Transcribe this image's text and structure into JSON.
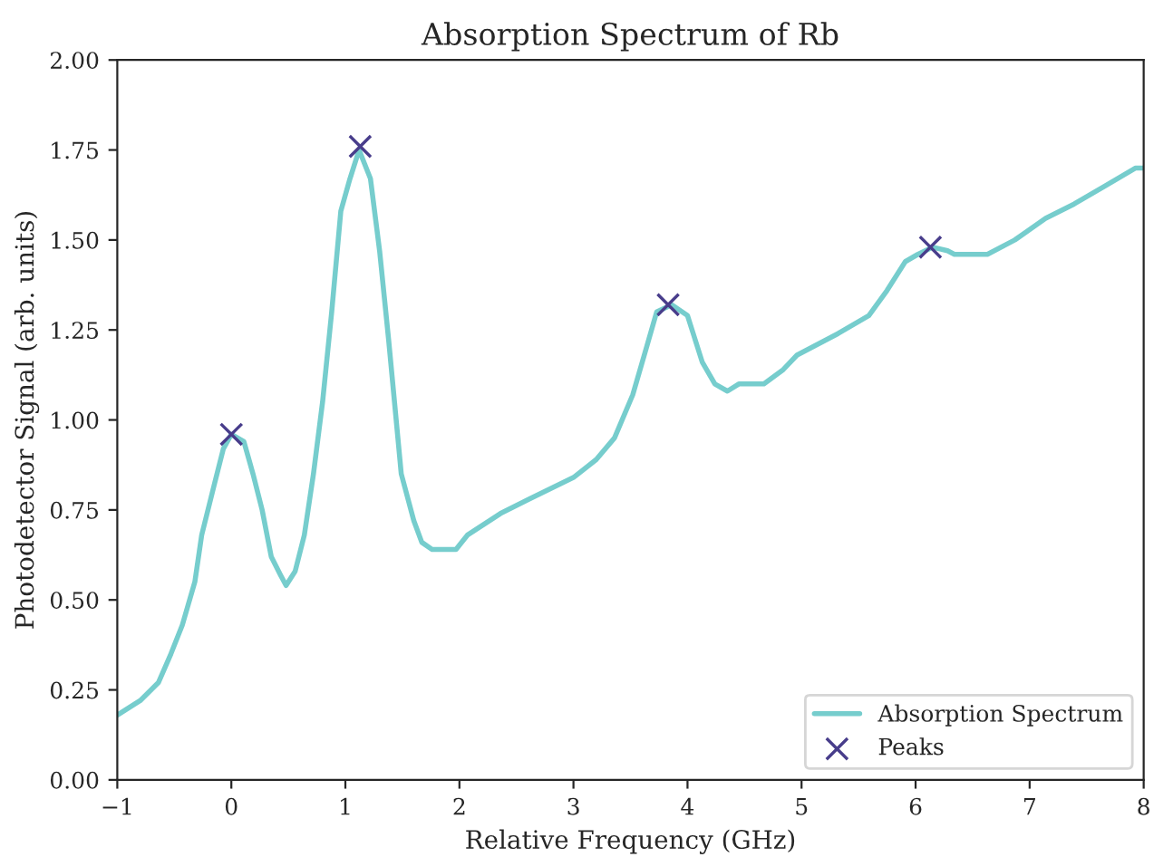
{
  "chart_data": {
    "type": "line",
    "title": "Absorption Spectrum of Rb",
    "xlabel": "Relative Frequency (GHz)",
    "ylabel": "Photodetector Signal (arb. units)",
    "xlim": [
      -1,
      8
    ],
    "ylim": [
      0,
      2
    ],
    "xticks": [
      {
        "value": -1,
        "label": "−1"
      },
      0,
      1,
      2,
      3,
      4,
      5,
      6,
      7,
      8
    ],
    "yticks": [
      {
        "value": 0,
        "label": "0.00"
      },
      {
        "value": 0.25,
        "label": "0.25"
      },
      {
        "value": 0.5,
        "label": "0.50"
      },
      {
        "value": 0.75,
        "label": "0.75"
      },
      {
        "value": 1,
        "label": "1.00"
      },
      {
        "value": 1.25,
        "label": "1.25"
      },
      {
        "value": 1.5,
        "label": "1.50"
      },
      {
        "value": 1.75,
        "label": "1.75"
      },
      {
        "value": 2,
        "label": "2.00"
      }
    ],
    "grid": false,
    "legend": "bottom right",
    "series": [
      {
        "name": "Absorption Spectrum",
        "color": "#76cdcd",
        "marker": "none",
        "line_style": "solid",
        "x": [
          -1,
          -0.8,
          -0.64,
          -0.53,
          -0.43,
          -0.32,
          -0.26,
          -0.15,
          -0.07,
          0,
          0.11,
          0.19,
          0.27,
          0.35,
          0.43,
          0.48,
          0.56,
          0.64,
          0.72,
          0.8,
          0.88,
          0.96,
          1.04,
          1.12,
          1.22,
          1.3,
          1.38,
          1.49,
          1.6,
          1.67,
          1.76,
          1.97,
          2.07,
          2.36,
          2.61,
          3.0,
          3.2,
          3.36,
          3.52,
          3.63,
          3.73,
          3.86,
          4.0,
          4.13,
          4.24,
          4.35,
          4.45,
          4.67,
          4.84,
          4.96,
          5.32,
          5.59,
          5.75,
          5.91,
          6.02,
          6.15,
          6.28,
          6.34,
          6.63,
          6.87,
          7.14,
          7.39,
          7.66,
          7.93,
          8.0
        ],
        "values": [
          0.18,
          0.22,
          0.27,
          0.35,
          0.43,
          0.55,
          0.68,
          0.82,
          0.92,
          0.96,
          0.94,
          0.85,
          0.75,
          0.62,
          0.57,
          0.54,
          0.58,
          0.68,
          0.85,
          1.05,
          1.3,
          1.58,
          1.67,
          1.75,
          1.67,
          1.47,
          1.22,
          0.85,
          0.72,
          0.66,
          0.64,
          0.64,
          0.68,
          0.74,
          0.78,
          0.84,
          0.89,
          0.95,
          1.07,
          1.19,
          1.3,
          1.32,
          1.29,
          1.16,
          1.1,
          1.08,
          1.1,
          1.1,
          1.14,
          1.18,
          1.24,
          1.29,
          1.36,
          1.44,
          1.46,
          1.48,
          1.47,
          1.46,
          1.46,
          1.5,
          1.56,
          1.6,
          1.65,
          1.7,
          1.7
        ]
      },
      {
        "name": "Peaks",
        "type": "scatter",
        "color": "#483d8b",
        "marker": "cross",
        "x": [
          0,
          1.13,
          3.83,
          6.13
        ],
        "values": [
          0.96,
          1.76,
          1.32,
          1.48
        ]
      }
    ]
  }
}
